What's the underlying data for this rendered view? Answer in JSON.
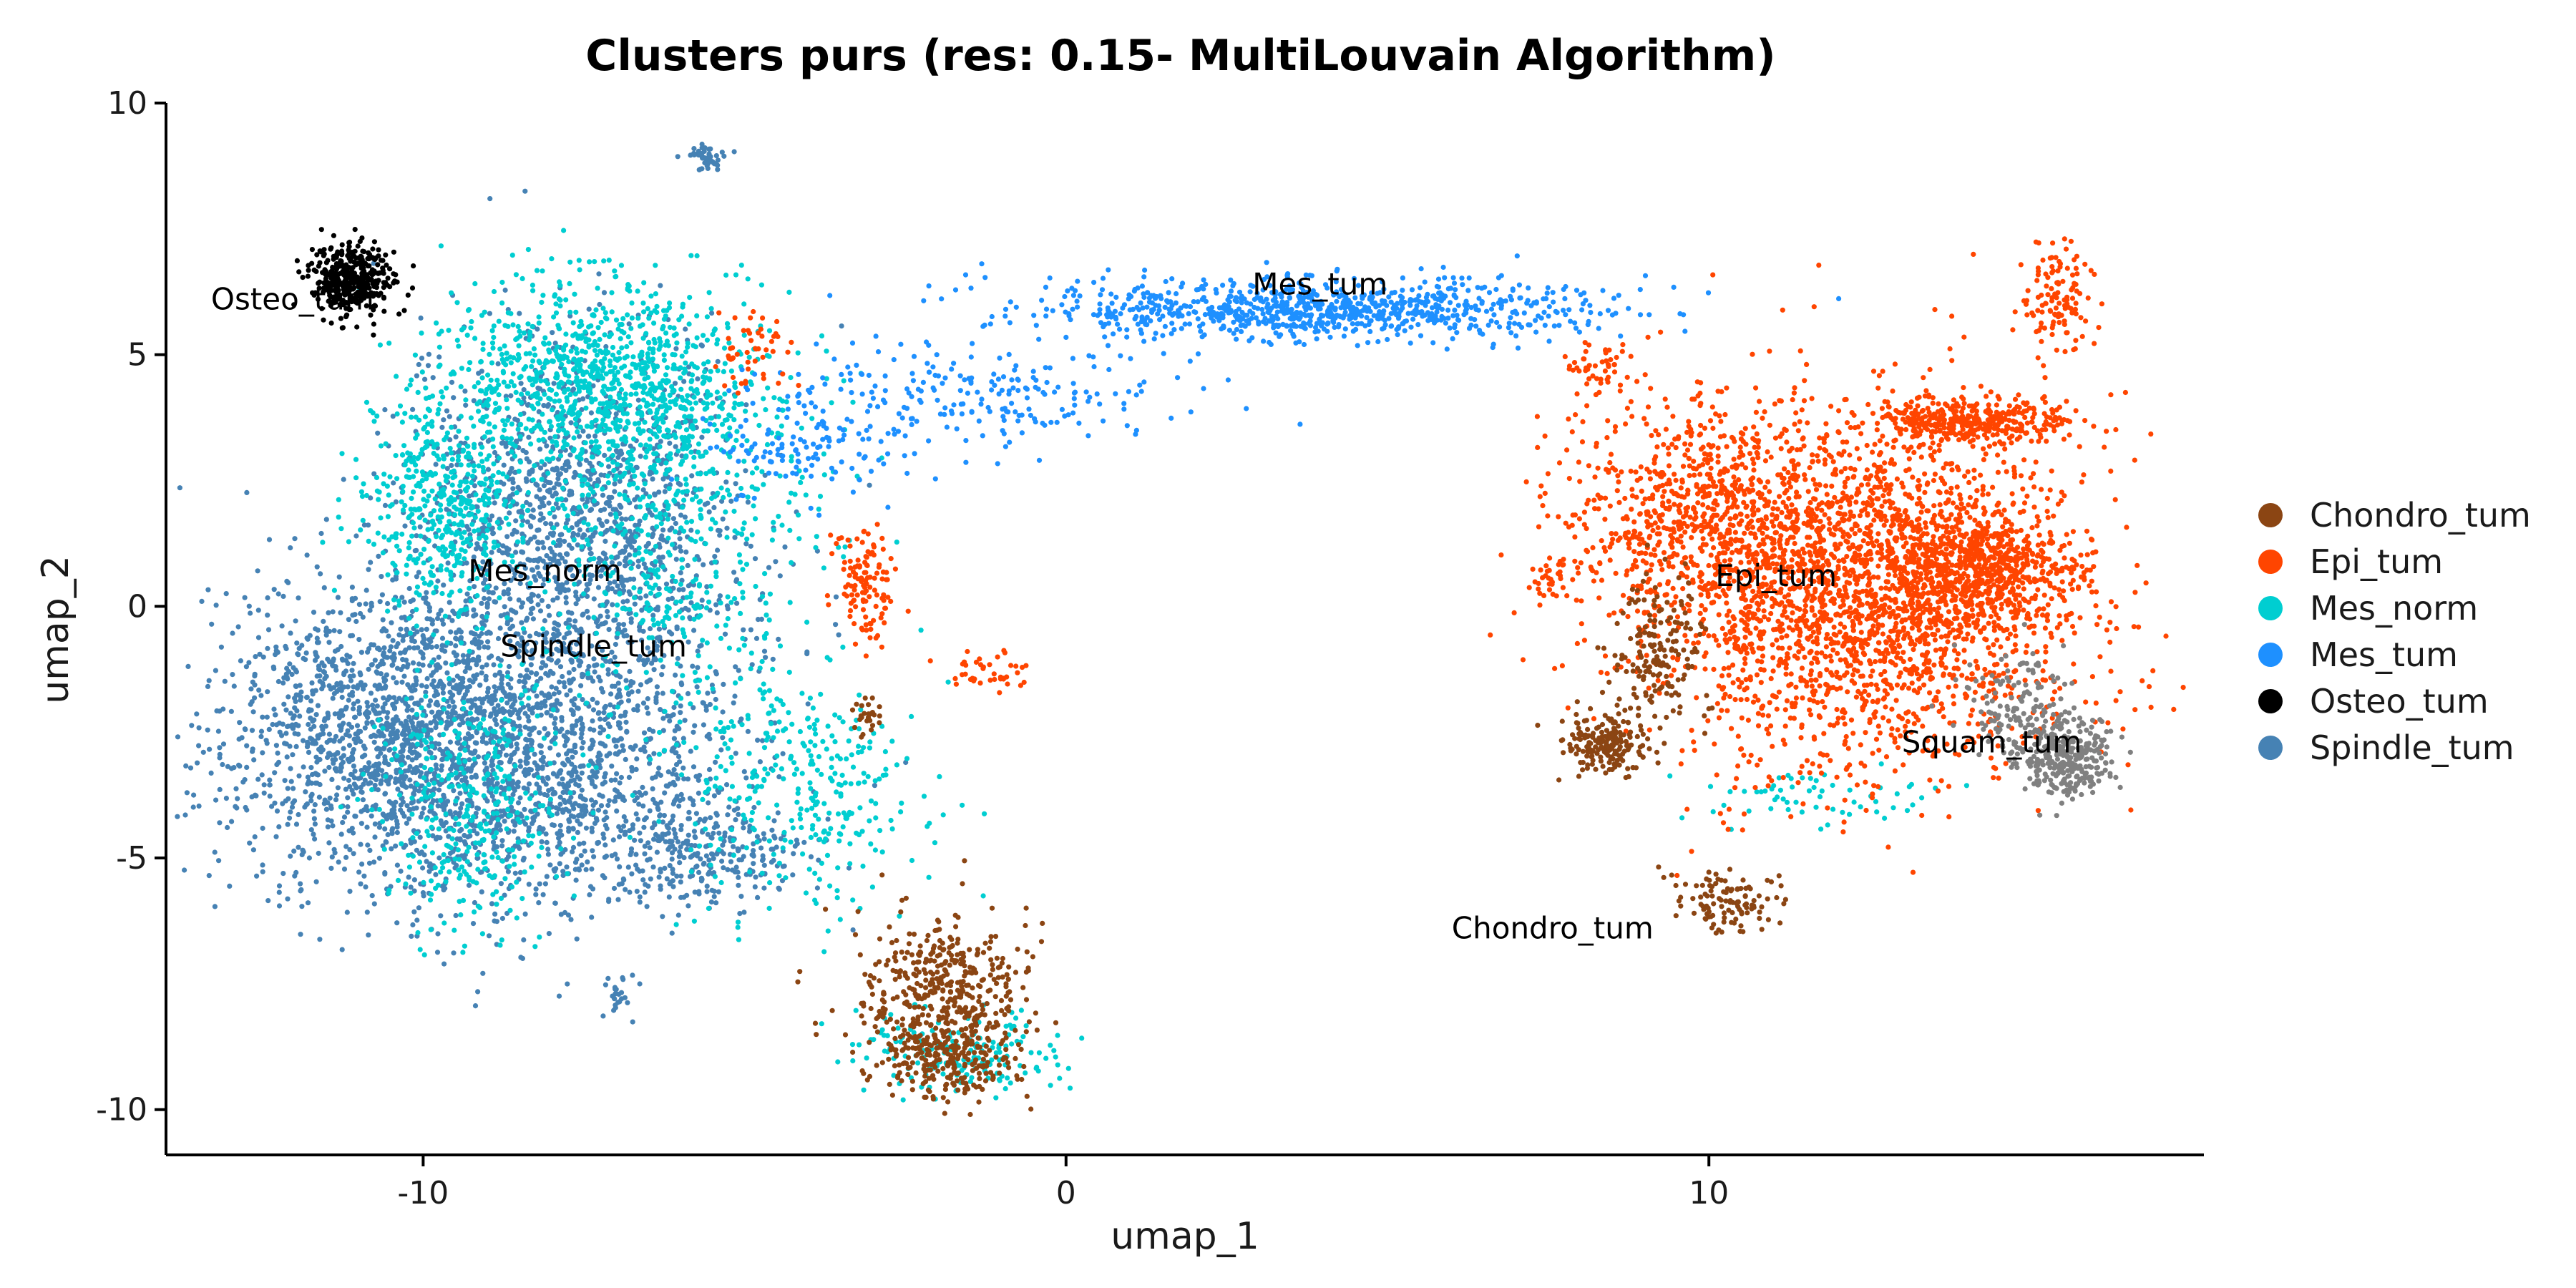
{
  "chart_data": {
    "type": "scatter",
    "title": "Clusters purs (res: 0.15- MultiLouvain Algorithm)",
    "xlabel": "umap_1",
    "ylabel": "umap_2",
    "xlim": [
      -14.0,
      17.7
    ],
    "ylim": [
      -10.9,
      10.0
    ],
    "xticks": [
      -10,
      0,
      10
    ],
    "xtick_labels": [
      "-10",
      "0",
      "10"
    ],
    "yticks": [
      -10,
      -5,
      0,
      5,
      10
    ],
    "ytick_labels": [
      "-10",
      "-5",
      "0",
      "5",
      "10"
    ],
    "grid": false,
    "legend_position": "right",
    "series": [
      {
        "name": "Chondro_tum",
        "color": "#8B4513"
      },
      {
        "name": "Epi_tum",
        "color": "#FF4500"
      },
      {
        "name": "Mes_norm",
        "color": "#00CED1"
      },
      {
        "name": "Mes_tum",
        "color": "#1E90FF"
      },
      {
        "name": "Osteo_tum",
        "color": "#000000"
      },
      {
        "name": "Spindle_tum",
        "color": "#4682B4"
      }
    ],
    "unlisted_cluster_color": "#808080",
    "cluster_labels": [
      {
        "text": "Osteo_tum",
        "x": -13.3,
        "y": 5.9
      },
      {
        "text": "Mes_tum",
        "x": 2.9,
        "y": 6.2
      },
      {
        "text": "Mes_norm",
        "x": -9.3,
        "y": 0.5
      },
      {
        "text": "Spindle_tum",
        "x": -8.8,
        "y": -1.0
      },
      {
        "text": "Epi_tum",
        "x": 10.1,
        "y": 0.4
      },
      {
        "text": "Squam_tum",
        "x": 13.0,
        "y": -2.9
      },
      {
        "text": "Chondro_tum",
        "x": 6.0,
        "y": -6.6
      }
    ],
    "clusters": [
      {
        "series": "Spindle_tum",
        "cx": -10.5,
        "cy": -2.5,
        "sx": 1.4,
        "sy": 1.5,
        "n": 1600
      },
      {
        "series": "Spindle_tum",
        "cx": -7.6,
        "cy": 1.5,
        "sx": 1.3,
        "sy": 2.0,
        "n": 1500
      },
      {
        "series": "Spindle_tum",
        "cx": -8.0,
        "cy": -3.2,
        "sx": 1.5,
        "sy": 1.4,
        "n": 1100
      },
      {
        "series": "Spindle_tum",
        "cx": -5.6,
        "cy": -4.9,
        "sx": 0.8,
        "sy": 0.5,
        "n": 260
      },
      {
        "series": "Spindle_tum",
        "cx": -5.6,
        "cy": 8.9,
        "sx": 0.15,
        "sy": 0.15,
        "n": 50
      },
      {
        "series": "Spindle_tum",
        "cx": -7.0,
        "cy": -7.7,
        "sx": 0.12,
        "sy": 0.3,
        "n": 25
      },
      {
        "series": "Mes_norm",
        "cx": -7.2,
        "cy": 4.4,
        "sx": 1.3,
        "sy": 1.0,
        "n": 1000
      },
      {
        "series": "Mes_norm",
        "cx": -9.7,
        "cy": 2.0,
        "sx": 0.6,
        "sy": 1.1,
        "n": 450
      },
      {
        "series": "Mes_norm",
        "cx": -9.2,
        "cy": -4.0,
        "sx": 0.7,
        "sy": 1.3,
        "n": 350
      },
      {
        "series": "Mes_norm",
        "cx": -4.2,
        "cy": -3.6,
        "sx": 1.0,
        "sy": 1.2,
        "n": 320
      },
      {
        "series": "Mes_norm",
        "cx": -1.7,
        "cy": -8.9,
        "sx": 0.8,
        "sy": 0.4,
        "n": 170
      },
      {
        "series": "Mes_norm",
        "cx": -6.0,
        "cy": 1.5,
        "sx": 1.2,
        "sy": 1.8,
        "n": 500
      },
      {
        "series": "Mes_norm",
        "cx": 11.7,
        "cy": -3.8,
        "sx": 0.8,
        "sy": 0.3,
        "n": 60
      },
      {
        "series": "Mes_tum",
        "cx": 4.0,
        "cy": 5.9,
        "sx": 2.2,
        "sy": 0.3,
        "n": 900
      },
      {
        "series": "Mes_tum",
        "cx": -1.5,
        "cy": 4.2,
        "sx": 1.6,
        "sy": 0.45,
        "n": 220
      },
      {
        "series": "Mes_tum",
        "cx": -4.0,
        "cy": 3.1,
        "sx": 0.8,
        "sy": 0.5,
        "n": 120
      },
      {
        "series": "Osteo_tum",
        "cx": -11.1,
        "cy": 6.5,
        "sx": 0.3,
        "sy": 0.35,
        "n": 380
      },
      {
        "series": "Epi_tum",
        "cx": 12.5,
        "cy": 0.3,
        "sx": 1.6,
        "sy": 1.7,
        "n": 2600
      },
      {
        "series": "Epi_tum",
        "cx": 9.8,
        "cy": 1.8,
        "sx": 1.1,
        "sy": 1.1,
        "n": 700
      },
      {
        "series": "Epi_tum",
        "cx": 14.0,
        "cy": 3.7,
        "sx": 0.8,
        "sy": 0.25,
        "n": 350
      },
      {
        "series": "Epi_tum",
        "cx": 15.4,
        "cy": 6.1,
        "sx": 0.3,
        "sy": 0.55,
        "n": 120
      },
      {
        "series": "Epi_tum",
        "cx": 14.2,
        "cy": 0.8,
        "sx": 0.7,
        "sy": 0.5,
        "n": 500
      },
      {
        "series": "Epi_tum",
        "cx": -3.1,
        "cy": 0.5,
        "sx": 0.2,
        "sy": 0.6,
        "n": 120
      },
      {
        "series": "Epi_tum",
        "cx": -4.8,
        "cy": 5.0,
        "sx": 0.3,
        "sy": 0.4,
        "n": 50
      },
      {
        "series": "Epi_tum",
        "cx": -1.2,
        "cy": -1.3,
        "sx": 0.3,
        "sy": 0.2,
        "n": 40
      },
      {
        "series": "Epi_tum",
        "cx": 7.5,
        "cy": 0.6,
        "sx": 0.15,
        "sy": 0.2,
        "n": 30
      },
      {
        "series": "Epi_tum",
        "cx": 8.3,
        "cy": 4.7,
        "sx": 0.3,
        "sy": 0.3,
        "n": 50
      },
      {
        "series": "Chondro_tum",
        "cx": 8.4,
        "cy": -2.7,
        "sx": 0.35,
        "sy": 0.3,
        "n": 200
      },
      {
        "series": "Chondro_tum",
        "cx": 9.2,
        "cy": -0.8,
        "sx": 0.4,
        "sy": 0.9,
        "n": 170
      },
      {
        "series": "Chondro_tum",
        "cx": 10.2,
        "cy": -5.9,
        "sx": 0.4,
        "sy": 0.3,
        "n": 110
      },
      {
        "series": "Chondro_tum",
        "cx": -1.9,
        "cy": -7.7,
        "sx": 0.7,
        "sy": 0.8,
        "n": 450
      },
      {
        "series": "Chondro_tum",
        "cx": -1.8,
        "cy": -9.0,
        "sx": 0.5,
        "sy": 0.4,
        "n": 200
      },
      {
        "series": "Chondro_tum",
        "cx": -3.1,
        "cy": -2.2,
        "sx": 0.1,
        "sy": 0.15,
        "n": 25
      },
      {
        "series": "unlisted",
        "cx": 15.5,
        "cy": -3.0,
        "sx": 0.35,
        "sy": 0.4,
        "n": 330
      },
      {
        "series": "unlisted",
        "cx": 14.8,
        "cy": -2.0,
        "sx": 0.4,
        "sy": 0.5,
        "n": 120
      }
    ]
  }
}
